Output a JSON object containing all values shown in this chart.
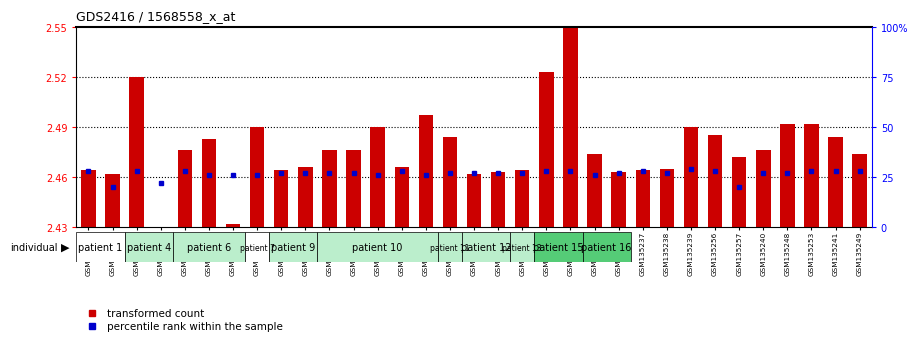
{
  "title": "GDS2416 / 1568558_x_at",
  "samples": [
    "GSM135233",
    "GSM135234",
    "GSM135260",
    "GSM135232",
    "GSM135235",
    "GSM135236",
    "GSM135231",
    "GSM135242",
    "GSM135243",
    "GSM135251",
    "GSM135252",
    "GSM135244",
    "GSM135259",
    "GSM135254",
    "GSM135255",
    "GSM135261",
    "GSM135229",
    "GSM135230",
    "GSM135245",
    "GSM135246",
    "GSM135258",
    "GSM135247",
    "GSM135250",
    "GSM135237",
    "GSM135238",
    "GSM135239",
    "GSM135256",
    "GSM135257",
    "GSM135240",
    "GSM135248",
    "GSM135253",
    "GSM135241",
    "GSM135249"
  ],
  "bar_values": [
    2.464,
    2.462,
    2.52,
    2.43,
    2.476,
    2.483,
    2.432,
    2.49,
    2.464,
    2.466,
    2.476,
    2.476,
    2.49,
    2.466,
    2.497,
    2.484,
    2.462,
    2.463,
    2.464,
    2.523,
    2.55,
    2.474,
    2.463,
    2.464,
    2.465,
    2.49,
    2.485,
    2.472,
    2.476,
    2.492,
    2.492,
    2.484,
    2.474
  ],
  "percentile_values": [
    28,
    20,
    28,
    22,
    28,
    26,
    26,
    26,
    27,
    27,
    27,
    27,
    26,
    28,
    26,
    27,
    27,
    27,
    27,
    28,
    28,
    26,
    27,
    28,
    27,
    29,
    28,
    20,
    27,
    27,
    28,
    28,
    28
  ],
  "patient_groups": [
    {
      "label": "patient 1",
      "start": 0,
      "end": 2,
      "color": "#ffffff"
    },
    {
      "label": "patient 4",
      "start": 2,
      "end": 4,
      "color": "#bbeecc"
    },
    {
      "label": "patient 6",
      "start": 4,
      "end": 7,
      "color": "#bbeecc"
    },
    {
      "label": "patient 7",
      "start": 7,
      "end": 8,
      "color": "#ffffff"
    },
    {
      "label": "patient 9",
      "start": 8,
      "end": 10,
      "color": "#bbeecc"
    },
    {
      "label": "patient 10",
      "start": 10,
      "end": 15,
      "color": "#bbeecc"
    },
    {
      "label": "patient 11",
      "start": 15,
      "end": 16,
      "color": "#bbeecc"
    },
    {
      "label": "patient 12",
      "start": 16,
      "end": 18,
      "color": "#bbeecc"
    },
    {
      "label": "patient 13",
      "start": 18,
      "end": 19,
      "color": "#bbeecc"
    },
    {
      "label": "patient 15",
      "start": 19,
      "end": 21,
      "color": "#55cc77"
    },
    {
      "label": "patient 16",
      "start": 21,
      "end": 23,
      "color": "#55cc77"
    }
  ],
  "ymin": 2.43,
  "ymax": 2.55,
  "yticks": [
    2.43,
    2.46,
    2.49,
    2.52,
    2.55
  ],
  "right_yticks": [
    0,
    25,
    50,
    75,
    100
  ],
  "right_ytick_labels": [
    "0",
    "25",
    "50",
    "75",
    "100%"
  ],
  "bar_color": "#cc0000",
  "percentile_color": "#0000cc",
  "dotted_lines": [
    2.46,
    2.49,
    2.52
  ]
}
